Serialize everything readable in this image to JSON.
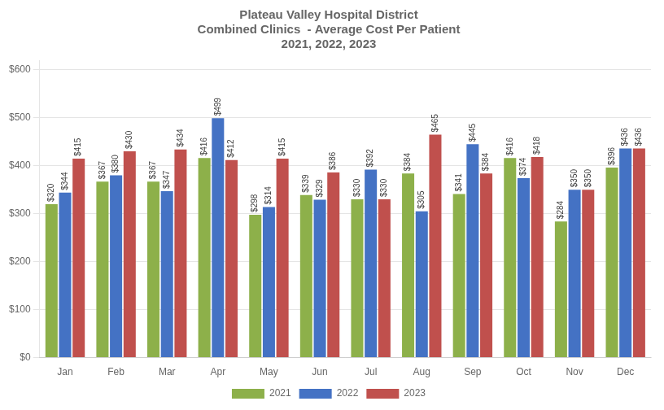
{
  "chart_data": {
    "type": "bar",
    "title": "Plateau Valley Hospital District\nCombined Clinics  - Average Cost Per Patient\n2021, 2022, 2023",
    "categories": [
      "Jan",
      "Feb",
      "Mar",
      "Apr",
      "May",
      "Jun",
      "Jul",
      "Aug",
      "Sep",
      "Oct",
      "Nov",
      "Dec"
    ],
    "series": [
      {
        "name": "2021",
        "color": "#8DB04A",
        "values": [
          320,
          367,
          367,
          416,
          298,
          339,
          330,
          384,
          341,
          416,
          284,
          396
        ],
        "value_labels": [
          "$320",
          "$367",
          "$367",
          "$416",
          "$298",
          "$339",
          "$330",
          "$384",
          "$341",
          "$416",
          "$284",
          "$396"
        ]
      },
      {
        "name": "2022",
        "color": "#4472C4",
        "values": [
          344,
          380,
          347,
          499,
          314,
          329,
          392,
          305,
          445,
          374,
          350,
          436
        ],
        "value_labels": [
          "$344",
          "$380",
          "$347",
          "$499",
          "$314",
          "$329",
          "$392",
          "$305",
          "$445",
          "$374",
          "$350",
          "$436"
        ]
      },
      {
        "name": "2023",
        "color": "#C0504D",
        "values": [
          415,
          430,
          434,
          412,
          415,
          386,
          330,
          465,
          384,
          418,
          350,
          436
        ],
        "value_labels": [
          "$415",
          "$430",
          "$434",
          "$412",
          "$415",
          "$386",
          "$330",
          "$465",
          "$384",
          "$418",
          "$350",
          "$436"
        ]
      }
    ],
    "ylim": [
      0,
      620
    ],
    "yticks": [
      {
        "value": 0,
        "label": "$0"
      },
      {
        "value": 100,
        "label": "$100"
      },
      {
        "value": 200,
        "label": "$200"
      },
      {
        "value": 300,
        "label": "$300"
      },
      {
        "value": 400,
        "label": "$400"
      },
      {
        "value": 500,
        "label": "$500"
      },
      {
        "value": 600,
        "label": "$600"
      }
    ],
    "grid": true,
    "legend": "bottom",
    "data_labels": true
  }
}
